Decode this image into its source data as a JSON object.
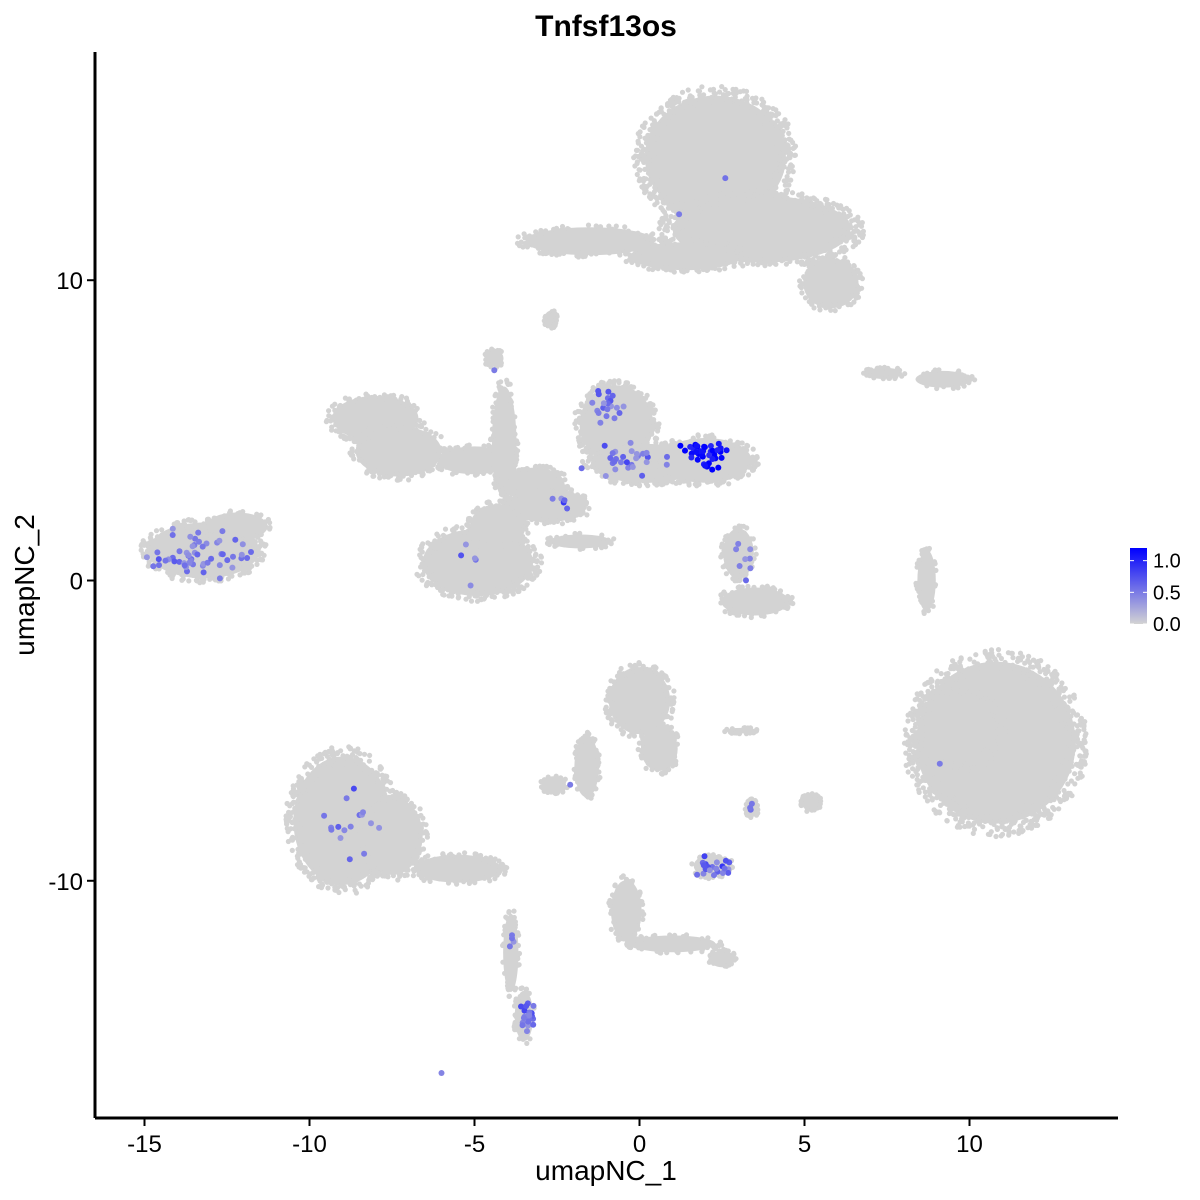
{
  "chart_data": {
    "type": "scatter",
    "title": "Tnfsf13os",
    "xlabel": "umapNC_1",
    "ylabel": "umapNC_2",
    "xlim": [
      -16.5,
      14.5
    ],
    "ylim": [
      -17.9,
      17.6
    ],
    "x_ticks": [
      -15,
      -10,
      -5,
      0,
      5,
      10
    ],
    "x_tick_labels": [
      "-15",
      "-10",
      "-5",
      "0",
      "5",
      "10"
    ],
    "y_ticks": [
      -10,
      0,
      10
    ],
    "y_tick_labels": [
      "-10",
      "0",
      "10"
    ],
    "grid": false,
    "legend": {
      "position": "right",
      "type": "colorbar",
      "range": [
        0,
        1.2
      ],
      "ticks": [
        0.0,
        0.5,
        1.0
      ],
      "tick_labels": [
        "0.0",
        "0.5",
        "1.0"
      ],
      "low_color": "#d3d3d3",
      "high_color": "#0000ff"
    },
    "base_color": "#d3d3d3",
    "clusters": [
      {
        "cx": 2.3,
        "cy": 14.1,
        "rx": 2.3,
        "ry": 2.2
      },
      {
        "cx": 3.7,
        "cy": 11.7,
        "rx": 2.9,
        "ry": 1.2
      },
      {
        "cx": -1.5,
        "cy": 11.3,
        "rx": 2.1,
        "ry": 0.5
      },
      {
        "cx": 1.4,
        "cy": 10.8,
        "rx": 1.8,
        "ry": 0.5
      },
      {
        "cx": 5.8,
        "cy": 9.9,
        "rx": 0.9,
        "ry": 0.9
      },
      {
        "cx": 9.2,
        "cy": 6.7,
        "rx": 0.9,
        "ry": 0.3
      },
      {
        "cx": 7.4,
        "cy": 6.9,
        "rx": 0.6,
        "ry": 0.2
      },
      {
        "cx": -8.0,
        "cy": 5.4,
        "rx": 1.4,
        "ry": 0.8
      },
      {
        "cx": -7.3,
        "cy": 4.3,
        "rx": 1.4,
        "ry": 0.9
      },
      {
        "cx": -5.0,
        "cy": 4.0,
        "rx": 1.2,
        "ry": 0.5
      },
      {
        "cx": -4.1,
        "cy": 4.6,
        "rx": 0.4,
        "ry": 2.0
      },
      {
        "cx": -3.2,
        "cy": 3.2,
        "rx": 1.0,
        "ry": 0.6
      },
      {
        "cx": -2.8,
        "cy": 2.5,
        "rx": 1.3,
        "ry": 0.6
      },
      {
        "cx": -0.7,
        "cy": 5.2,
        "rx": 1.2,
        "ry": 1.4
      },
      {
        "cx": 0.2,
        "cy": 3.9,
        "rx": 1.8,
        "ry": 0.7
      },
      {
        "cx": 2.0,
        "cy": 4.0,
        "rx": 1.5,
        "ry": 0.8
      },
      {
        "cx": -4.9,
        "cy": 0.6,
        "rx": 1.8,
        "ry": 1.2
      },
      {
        "cx": -4.3,
        "cy": 1.8,
        "rx": 0.9,
        "ry": 0.8
      },
      {
        "cx": -1.8,
        "cy": 1.3,
        "rx": 1.0,
        "ry": 0.25
      },
      {
        "cx": 3.0,
        "cy": 0.9,
        "rx": 0.5,
        "ry": 0.9
      },
      {
        "cx": 3.5,
        "cy": -0.7,
        "rx": 1.1,
        "ry": 0.5
      },
      {
        "cx": 8.7,
        "cy": 0.0,
        "rx": 0.3,
        "ry": 1.1
      },
      {
        "cx": 10.8,
        "cy": -5.4,
        "rx": 2.6,
        "ry": 2.9
      },
      {
        "cx": 9.7,
        "cy": -4.9,
        "rx": 1.3,
        "ry": 1.4
      },
      {
        "cx": -13.2,
        "cy": 1.0,
        "rx": 1.8,
        "ry": 1.0
      },
      {
        "cx": -12.2,
        "cy": 1.8,
        "rx": 1.0,
        "ry": 0.5
      },
      {
        "cx": -9.0,
        "cy": -8.0,
        "rx": 1.6,
        "ry": 2.3
      },
      {
        "cx": -7.5,
        "cy": -8.5,
        "rx": 1.0,
        "ry": 1.4
      },
      {
        "cx": -5.5,
        "cy": -9.6,
        "rx": 1.4,
        "ry": 0.5
      },
      {
        "cx": -3.9,
        "cy": -12.4,
        "rx": 0.25,
        "ry": 1.4
      },
      {
        "cx": -3.5,
        "cy": -14.5,
        "rx": 0.3,
        "ry": 0.9
      },
      {
        "cx": 0.0,
        "cy": -4.0,
        "rx": 1.0,
        "ry": 1.2
      },
      {
        "cx": 0.6,
        "cy": -5.6,
        "rx": 0.6,
        "ry": 0.8
      },
      {
        "cx": -1.6,
        "cy": -6.2,
        "rx": 0.4,
        "ry": 1.1
      },
      {
        "cx": -2.6,
        "cy": -6.8,
        "rx": 0.4,
        "ry": 0.3
      },
      {
        "cx": 2.2,
        "cy": -9.5,
        "rx": 0.6,
        "ry": 0.4
      },
      {
        "cx": 3.4,
        "cy": -7.6,
        "rx": 0.2,
        "ry": 0.3
      },
      {
        "cx": 5.2,
        "cy": -7.4,
        "rx": 0.3,
        "ry": 0.3
      },
      {
        "cx": 3.1,
        "cy": -5.0,
        "rx": 0.5,
        "ry": 0.1
      },
      {
        "cx": -0.4,
        "cy": -11.0,
        "rx": 0.5,
        "ry": 1.1
      },
      {
        "cx": 1.0,
        "cy": -12.1,
        "rx": 1.4,
        "ry": 0.3
      },
      {
        "cx": 2.5,
        "cy": -12.6,
        "rx": 0.4,
        "ry": 0.3
      },
      {
        "cx": -2.7,
        "cy": 8.7,
        "rx": 0.2,
        "ry": 0.3
      },
      {
        "cx": -4.4,
        "cy": 7.4,
        "rx": 0.3,
        "ry": 0.3
      }
    ],
    "highlights": [
      {
        "x": 2.0,
        "y": 4.2,
        "v": 1.1,
        "sx": 0.6,
        "sy": 0.35,
        "n": 40
      },
      {
        "x": -1.0,
        "y": 5.8,
        "v": 0.55,
        "sx": 0.35,
        "sy": 0.5,
        "n": 20
      },
      {
        "x": -0.5,
        "y": 4.0,
        "v": 0.5,
        "sx": 1.0,
        "sy": 0.4,
        "n": 28
      },
      {
        "x": -13.3,
        "y": 0.9,
        "v": 0.5,
        "sx": 1.2,
        "sy": 0.6,
        "n": 55
      },
      {
        "x": -8.6,
        "y": -8.2,
        "v": 0.5,
        "sx": 1.0,
        "sy": 1.1,
        "n": 16
      },
      {
        "x": -3.4,
        "y": -14.5,
        "v": 0.6,
        "sx": 0.2,
        "sy": 0.4,
        "n": 24
      },
      {
        "x": -3.9,
        "y": -12.3,
        "v": 0.5,
        "sx": 0.1,
        "sy": 0.7,
        "n": 4
      },
      {
        "x": 2.2,
        "y": -9.5,
        "v": 0.6,
        "sx": 0.5,
        "sy": 0.3,
        "n": 22
      },
      {
        "x": 3.1,
        "y": 0.7,
        "v": 0.5,
        "sx": 0.3,
        "sy": 0.5,
        "n": 8
      },
      {
        "x": -4.8,
        "y": 0.6,
        "v": 0.5,
        "sx": 1.0,
        "sy": 0.8,
        "n": 5
      },
      {
        "x": -2.4,
        "y": 2.6,
        "v": 0.65,
        "sx": 0.5,
        "sy": 0.3,
        "n": 5
      },
      {
        "x": 2.6,
        "y": 13.4,
        "v": 0.55,
        "sx": 0.05,
        "sy": 0.05,
        "n": 1
      },
      {
        "x": 1.2,
        "y": 12.2,
        "v": 0.5,
        "sx": 0.05,
        "sy": 0.05,
        "n": 1
      },
      {
        "x": 9.1,
        "y": -6.1,
        "v": 0.5,
        "sx": 0.05,
        "sy": 0.05,
        "n": 1
      },
      {
        "x": 3.4,
        "y": -7.6,
        "v": 0.55,
        "sx": 0.1,
        "sy": 0.15,
        "n": 3
      },
      {
        "x": -2.1,
        "y": -6.8,
        "v": 0.5,
        "sx": 0.05,
        "sy": 0.05,
        "n": 1
      },
      {
        "x": -6.0,
        "y": -16.4,
        "v": 0.45,
        "sx": 0.05,
        "sy": 0.05,
        "n": 1
      },
      {
        "x": -4.4,
        "y": 7.0,
        "v": 0.5,
        "sx": 0.05,
        "sy": 0.05,
        "n": 1
      }
    ]
  }
}
